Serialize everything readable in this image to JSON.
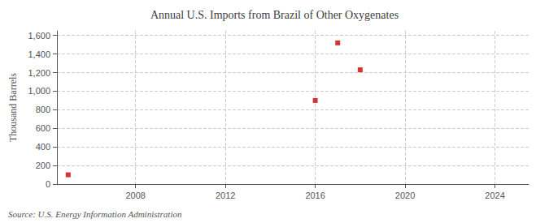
{
  "chart_data": {
    "type": "scatter",
    "title": "Annual U.S. Imports from Brazil of Other Oxygenates",
    "ylabel": "Thousand Barrels",
    "annotation": "Source: U.S. Energy Information Administration",
    "x": [
      2005,
      2016,
      2017,
      2018
    ],
    "values": [
      100,
      900,
      1520,
      1230
    ],
    "color": "#cc0000",
    "marker": "square",
    "xlim": [
      2004.5,
      2025.5
    ],
    "xticks": [
      2008,
      2012,
      2016,
      2020,
      2024
    ],
    "ylim": [
      0,
      1650
    ],
    "yticks": [
      0,
      200,
      400,
      600,
      800,
      {
        "value": 1000,
        "label": "1,000"
      },
      {
        "value": 1200,
        "label": "1,200"
      },
      {
        "value": 1400,
        "label": "1,400"
      },
      {
        "value": 1600,
        "label": "1,600"
      }
    ],
    "grid": true
  }
}
